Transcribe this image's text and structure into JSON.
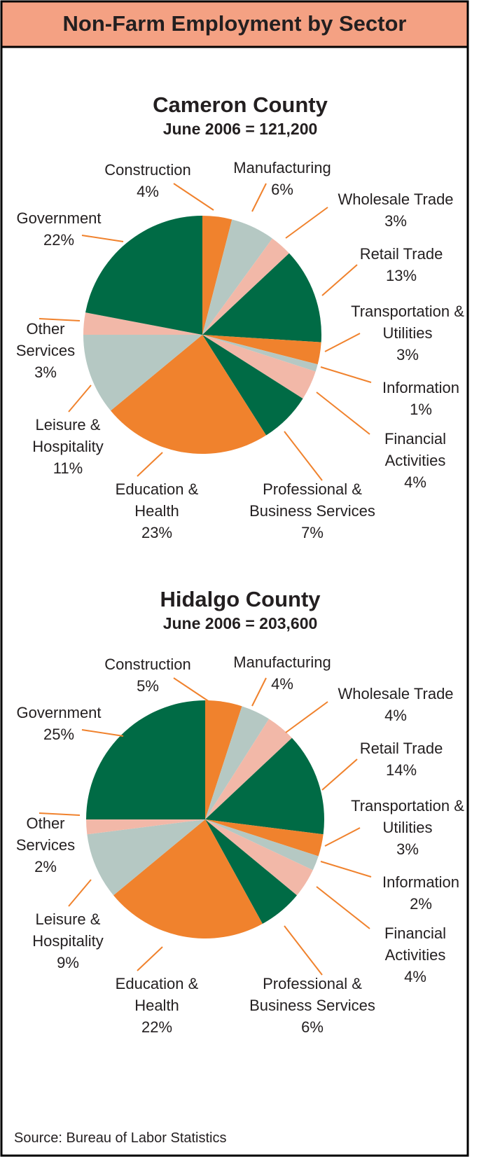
{
  "title": "Non-Farm Employment by Sector",
  "source": "Source: Bureau of Labor Statistics",
  "chart_data": [
    {
      "type": "pie",
      "title": "Cameron County",
      "subtitle": "June 2006 = 121,200",
      "categories": [
        "Construction",
        "Manufacturing",
        "Wholesale Trade",
        "Retail Trade",
        "Transportation & Utilities",
        "Information",
        "Financial Activities",
        "Professional & Business Services",
        "Education & Health",
        "Leisure & Hospitality",
        "Other Services",
        "Government"
      ],
      "values": [
        4,
        6,
        3,
        13,
        3,
        1,
        4,
        7,
        23,
        11,
        3,
        22
      ],
      "value_labels": [
        "4%",
        "6%",
        "3%",
        "13%",
        "3%",
        "1%",
        "4%",
        "7%",
        "23%",
        "11%",
        "3%",
        "22%"
      ],
      "colors": [
        "#f0822d",
        "#b5c8c3",
        "#f2b8a8",
        "#006b45",
        "#f0822d",
        "#b5c8c3",
        "#f2b8a8",
        "#006b45",
        "#f0822d",
        "#b5c8c3",
        "#f2b8a8",
        "#006b45"
      ]
    },
    {
      "type": "pie",
      "title": "Hidalgo County",
      "subtitle": "June 2006 = 203,600",
      "categories": [
        "Construction",
        "Manufacturing",
        "Wholesale Trade",
        "Retail Trade",
        "Transportation & Utilities",
        "Information",
        "Financial Activities",
        "Professional & Business Services",
        "Education & Health",
        "Leisure & Hospitality",
        "Other Services",
        "Government"
      ],
      "values": [
        5,
        4,
        4,
        14,
        3,
        2,
        4,
        6,
        22,
        9,
        2,
        25
      ],
      "value_labels": [
        "5%",
        "4%",
        "4%",
        "14%",
        "3%",
        "2%",
        "4%",
        "6%",
        "22%",
        "9%",
        "2%",
        "25%"
      ],
      "colors": [
        "#f0822d",
        "#b5c8c3",
        "#f2b8a8",
        "#006b45",
        "#f0822d",
        "#b5c8c3",
        "#f2b8a8",
        "#006b45",
        "#f0822d",
        "#b5c8c3",
        "#f2b8a8",
        "#006b45"
      ]
    }
  ]
}
